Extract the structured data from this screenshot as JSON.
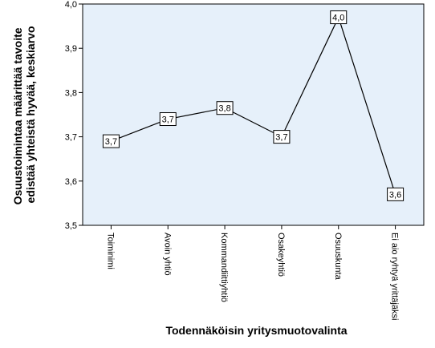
{
  "chart_data": {
    "type": "line",
    "categories": [
      "Toiminimi",
      "Avoin yhtiö",
      "Kommandiittiyhtiö",
      "Osakeyhtiö",
      "Osuuskunta",
      "Ei aio ryhtyä yrittäjäksi"
    ],
    "values": [
      3.69,
      3.74,
      3.765,
      3.7,
      3.97,
      3.57
    ],
    "data_labels": [
      "3,7",
      "3,7",
      "3,8",
      "3,7",
      "4,0",
      "3,6"
    ],
    "xlabel": "Todennäköisin yritysmuotovalinta",
    "ylabel_lines": [
      "Osuustoimintaa määrittää tavoite",
      "edistää yhteistä hyvää, keskiarvo"
    ],
    "ylim": [
      3.5,
      4.0
    ],
    "yticks": [
      3.5,
      3.6,
      3.7,
      3.8,
      3.9,
      4.0
    ],
    "ytick_labels": [
      "3,5",
      "3,6",
      "3,7",
      "3,8",
      "3,9",
      "4,0"
    ],
    "grid": false,
    "colors": {
      "plot_background": "#e6f0fa",
      "line": "#000000",
      "frame": "#000000"
    }
  }
}
